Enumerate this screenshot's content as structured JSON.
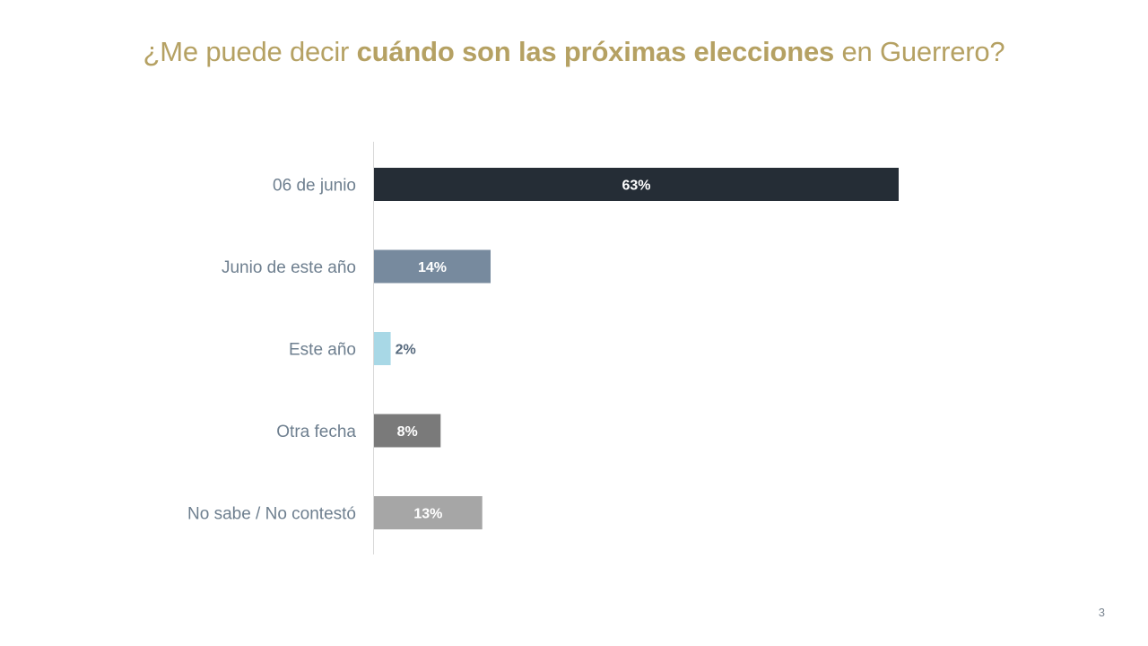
{
  "slide": {
    "title_pre": "¿Me puede decir ",
    "title_bold": "cuándo son las próximas elecciones",
    "title_post": " en Guerrero?",
    "page_number": "3"
  },
  "chart_data": {
    "type": "bar",
    "orientation": "horizontal",
    "title": "¿Me puede decir cuándo son las próximas elecciones en Guerrero?",
    "categories": [
      "06 de junio",
      "Junio de este año",
      "Este año",
      "Otra fecha",
      "No sabe / No contestó"
    ],
    "values": [
      63,
      14,
      2,
      8,
      13
    ],
    "value_labels": [
      "63%",
      "14%",
      "2%",
      "8%",
      "13%"
    ],
    "colors": [
      "#252d36",
      "#778a9e",
      "#a8d8e6",
      "#7a7a7a",
      "#a6a6a6"
    ],
    "xlim": [
      0,
      100
    ],
    "grid": false,
    "legend": "none"
  }
}
